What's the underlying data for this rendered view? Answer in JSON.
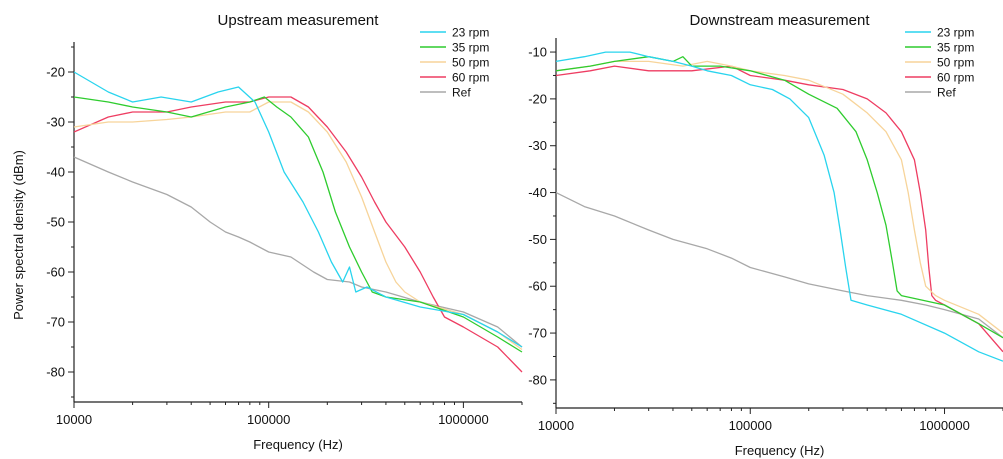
{
  "figure": {
    "ylabel": "Power spectral density (dBm)"
  },
  "chart_data": [
    {
      "type": "line",
      "title": "Upstream measurement",
      "xlabel": "Frequency (Hz)",
      "ylabel": "Power spectral density (dBm)",
      "xscale": "log",
      "xlim": [
        10000,
        2000000
      ],
      "ylim": [
        -86,
        -14
      ],
      "xticks": [
        "10000",
        "100000",
        "1000000"
      ],
      "yticks": [
        -20,
        -30,
        -40,
        -50,
        -60,
        -70,
        -80
      ],
      "legend_position": "top-right",
      "grid": false,
      "series": [
        {
          "name": "23 rpm",
          "color": "#29d4ee",
          "x": [
            10000,
            15000,
            20000,
            28000,
            40000,
            55000,
            70000,
            85000,
            100000,
            120000,
            150000,
            180000,
            210000,
            240000,
            260000,
            280000,
            320000,
            400000,
            600000,
            1000000,
            1500000,
            2000000
          ],
          "y": [
            -20,
            -24,
            -26,
            -25,
            -26,
            -24,
            -23,
            -26,
            -32,
            -40,
            -46,
            -52,
            -58,
            -62,
            -59,
            -64,
            -63,
            -65,
            -67,
            -68.5,
            -72,
            -75
          ]
        },
        {
          "name": "35 rpm",
          "color": "#2ecc2e",
          "x": [
            10000,
            15000,
            20000,
            30000,
            40000,
            60000,
            80000,
            95000,
            110000,
            130000,
            160000,
            190000,
            220000,
            260000,
            300000,
            340000,
            400000,
            600000,
            1000000,
            1500000,
            2000000
          ],
          "y": [
            -25,
            -26,
            -27,
            -28,
            -29,
            -27,
            -26,
            -25,
            -27,
            -29,
            -33,
            -40,
            -48,
            -55,
            -60,
            -64,
            -65,
            -66,
            -69,
            -73,
            -76
          ]
        },
        {
          "name": "50 rpm",
          "color": "#f7d49a",
          "x": [
            10000,
            15000,
            20000,
            30000,
            40000,
            60000,
            80000,
            100000,
            130000,
            160000,
            200000,
            250000,
            300000,
            350000,
            400000,
            450000,
            500000,
            600000,
            1000000,
            1500000,
            2000000
          ],
          "y": [
            -31,
            -30,
            -30,
            -29.5,
            -29,
            -28,
            -28,
            -26,
            -26,
            -28,
            -32,
            -38,
            -45,
            -52,
            -58,
            -62,
            -64,
            -66,
            -68.5,
            -72,
            -75.5
          ]
        },
        {
          "name": "60 rpm",
          "color": "#ee3d62",
          "x": [
            10000,
            15000,
            20000,
            30000,
            40000,
            60000,
            80000,
            100000,
            130000,
            160000,
            200000,
            250000,
            300000,
            350000,
            400000,
            500000,
            600000,
            700000,
            800000,
            1000000,
            1500000,
            2000000
          ],
          "y": [
            -32,
            -29,
            -28,
            -28,
            -27,
            -26,
            -26,
            -25,
            -25,
            -27,
            -31,
            -36,
            -41,
            -46,
            -50,
            -55,
            -60,
            -65,
            -69,
            -71,
            -75,
            -80
          ]
        },
        {
          "name": "Ref",
          "color": "#a8a8a8",
          "x": [
            10000,
            15000,
            20000,
            30000,
            40000,
            50000,
            60000,
            70000,
            80000,
            100000,
            130000,
            170000,
            200000,
            260000,
            300000,
            400000,
            600000,
            1000000,
            1500000,
            2000000
          ],
          "y": [
            -37,
            -40,
            -42,
            -44.5,
            -47,
            -50,
            -52,
            -53,
            -54,
            -56,
            -57,
            -60,
            -61.5,
            -62,
            -63,
            -64,
            -66,
            -68,
            -71,
            -75
          ]
        }
      ]
    },
    {
      "type": "line",
      "title": "Downstream measurement",
      "xlabel": "Frequency (Hz)",
      "ylabel": "",
      "xscale": "log",
      "xlim": [
        10000,
        2000000
      ],
      "ylim": [
        -86,
        -7
      ],
      "xticks": [
        "10000",
        "100000",
        "1000000"
      ],
      "yticks": [
        -10,
        -20,
        -30,
        -40,
        -50,
        -60,
        -70,
        -80
      ],
      "legend_position": "top-right",
      "grid": false,
      "series": [
        {
          "name": "23 rpm",
          "color": "#29d4ee",
          "x": [
            10000,
            14000,
            18000,
            24000,
            30000,
            40000,
            50000,
            60000,
            80000,
            100000,
            130000,
            160000,
            200000,
            240000,
            270000,
            290000,
            310000,
            330000,
            400000,
            600000,
            1000000,
            1500000,
            2000000
          ],
          "y": [
            -12,
            -11,
            -10,
            -10,
            -11,
            -12,
            -13,
            -14,
            -15,
            -17,
            -18,
            -20,
            -24,
            -32,
            -40,
            -48,
            -56,
            -63,
            -64,
            -66,
            -70,
            -74,
            -76
          ]
        },
        {
          "name": "35 rpm",
          "color": "#2ecc2e",
          "x": [
            10000,
            15000,
            20000,
            30000,
            40000,
            45000,
            50000,
            70000,
            100000,
            150000,
            200000,
            280000,
            350000,
            400000,
            450000,
            500000,
            540000,
            570000,
            600000,
            1000000,
            1500000,
            2000000
          ],
          "y": [
            -14,
            -13,
            -12,
            -11,
            -12,
            -11,
            -13,
            -13,
            -14,
            -16,
            -19,
            -22,
            -27,
            -33,
            -40,
            -47,
            -55,
            -61,
            -62,
            -64,
            -68,
            -71
          ]
        },
        {
          "name": "50 rpm",
          "color": "#f7d49a",
          "x": [
            10000,
            15000,
            20000,
            30000,
            45000,
            60000,
            80000,
            100000,
            150000,
            200000,
            300000,
            400000,
            500000,
            600000,
            650000,
            700000,
            750000,
            800000,
            900000,
            1000000,
            1500000,
            2000000
          ],
          "y": [
            -14,
            -13,
            -12,
            -12,
            -13,
            -12,
            -13,
            -14,
            -15,
            -16,
            -19,
            -23,
            -27,
            -33,
            -40,
            -48,
            -55,
            -60,
            -62,
            -63,
            -66,
            -70
          ]
        },
        {
          "name": "60 rpm",
          "color": "#ee3d62",
          "x": [
            10000,
            15000,
            20000,
            30000,
            50000,
            80000,
            100000,
            150000,
            200000,
            300000,
            400000,
            500000,
            600000,
            700000,
            750000,
            800000,
            830000,
            860000,
            900000,
            1000000,
            1500000,
            2000000
          ],
          "y": [
            -15,
            -14,
            -13,
            -14,
            -14,
            -13,
            -15,
            -16,
            -17,
            -18,
            -20,
            -23,
            -27,
            -33,
            -40,
            -48,
            -56,
            -62,
            -63,
            -64,
            -68,
            -74
          ]
        },
        {
          "name": "Ref",
          "color": "#a8a8a8",
          "x": [
            10000,
            14000,
            20000,
            30000,
            40000,
            60000,
            80000,
            100000,
            150000,
            200000,
            300000,
            400000,
            600000,
            800000,
            1000000,
            1500000,
            2000000
          ],
          "y": [
            -40,
            -43,
            -45,
            -48,
            -50,
            -52,
            -54,
            -56,
            -58,
            -59.5,
            -61,
            -62,
            -63,
            -64,
            -65,
            -67,
            -71
          ]
        }
      ]
    }
  ]
}
